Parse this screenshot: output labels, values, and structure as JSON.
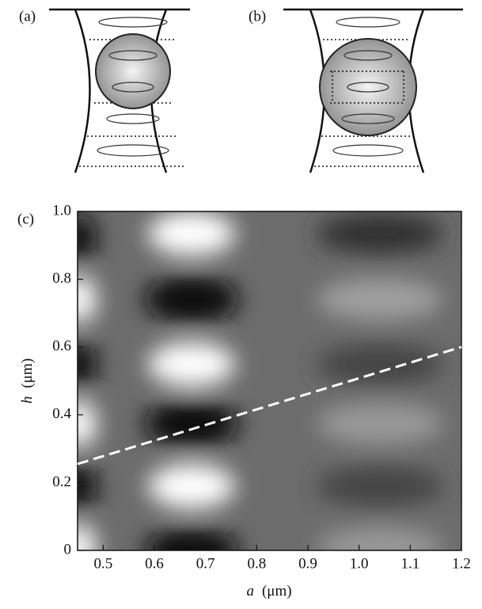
{
  "panels": {
    "a": {
      "label": "(a)"
    },
    "b": {
      "label": "(b)"
    }
  },
  "chart_data": {
    "type": "line",
    "label": "(c)",
    "xlabel_var": "a",
    "xlabel_unit": "(μm)",
    "ylabel_var": "h",
    "ylabel_unit": "(μm)",
    "xlim": [
      0.45,
      1.2
    ],
    "ylim": [
      0,
      1
    ],
    "xticks": [
      0.5,
      0.6,
      0.7,
      0.8,
      0.9,
      {
        "value": 1,
        "label": "1.0"
      },
      1.1,
      1.2
    ],
    "yticks": [
      0,
      0.2,
      0.4,
      0.6,
      0.8,
      {
        "value": 1,
        "label": "1.0"
      }
    ],
    "series": [
      {
        "color": "#ffffff",
        "x": [
          0.45,
          1.2
        ],
        "values": [
          0.255,
          0.6
        ]
      }
    ]
  }
}
